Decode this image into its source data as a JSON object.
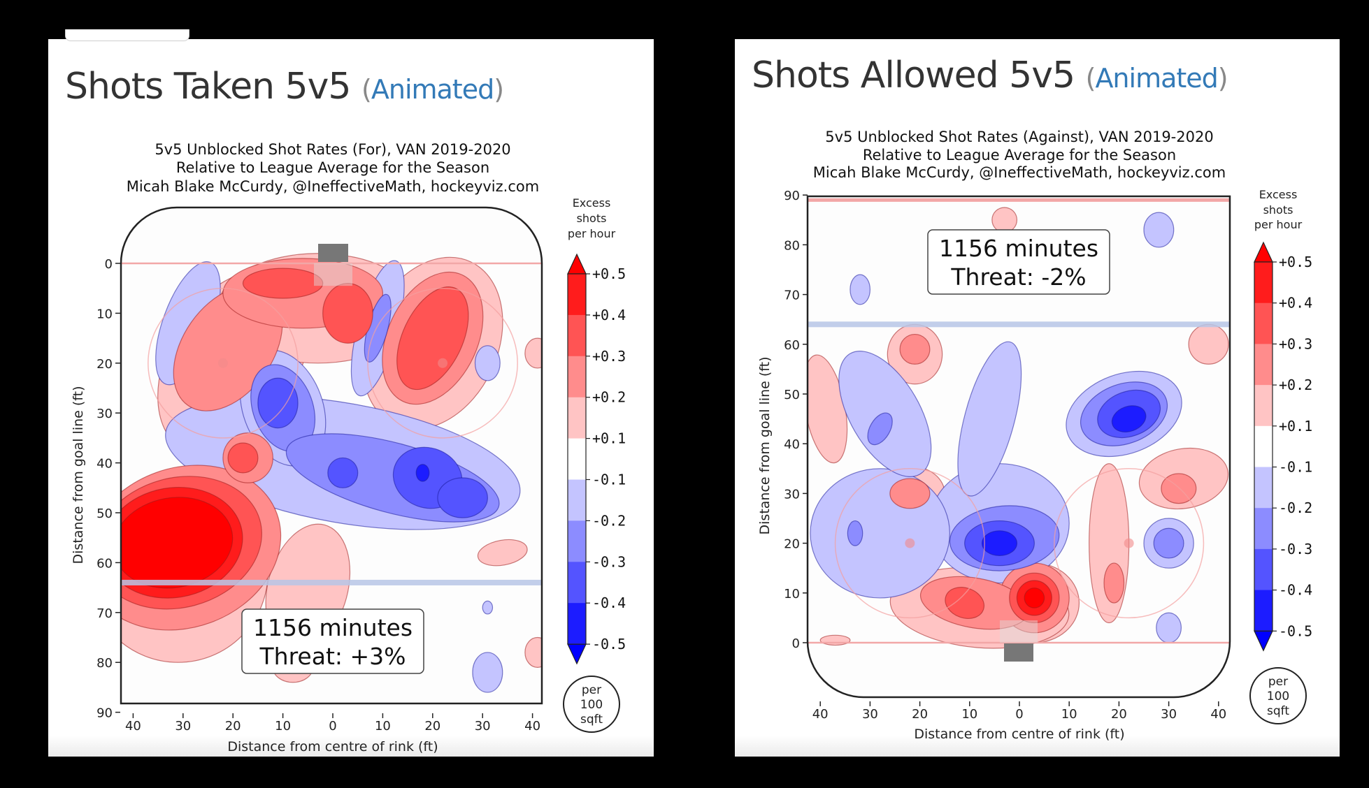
{
  "panels": [
    {
      "heading": "Shots Taken 5v5",
      "heading_link": "Animated",
      "paren_open": "(",
      "paren_close": ")"
    },
    {
      "heading": "Shots Allowed 5v5",
      "heading_link": "Animated",
      "paren_open": "(",
      "paren_close": ")"
    }
  ],
  "colors": {
    "link": "#337ab7",
    "pos": [
      "#ffc4c4",
      "#ff8c8c",
      "#ff5454",
      "#ff1c1c",
      "#ff0000"
    ],
    "neg": [
      "#c4c4ff",
      "#8c8cff",
      "#5454ff",
      "#1c1cff",
      "#0000ff"
    ],
    "blue_line": "#b7c6e6",
    "goal_line": "#f2a7a7",
    "net": "#777777"
  },
  "chart_data": [
    {
      "type": "heatmap",
      "title_lines": [
        "5v5 Unblocked Shot Rates (For), VAN 2019-2020",
        "Relative to League Average for the Season",
        "Micah Blake McCurdy, @IneffectiveMath, hockeyviz.com"
      ],
      "xlabel": "Distance from centre of rink (ft)",
      "ylabel": "Distance from goal line (ft)",
      "x_ticks": [
        "40",
        "30",
        "20",
        "10",
        "0",
        "10",
        "20",
        "30",
        "40"
      ],
      "x_tick_values": [
        -40,
        -30,
        -20,
        -10,
        0,
        10,
        20,
        30,
        40
      ],
      "y_ticks": [
        "0",
        "10",
        "20",
        "30",
        "40",
        "50",
        "60",
        "70",
        "80",
        "90"
      ],
      "y_tick_values": [
        0,
        10,
        20,
        30,
        40,
        50,
        60,
        70,
        80,
        90
      ],
      "xlim": [
        -42.5,
        42.5
      ],
      "ylim": [
        -11,
        89
      ],
      "y_inverted": true,
      "goal_end": "top",
      "blue_line_ft": 64,
      "colorbar": {
        "title": [
          "Excess",
          "shots",
          "per hour"
        ],
        "tick_labels": [
          "+0.5",
          "+0.4",
          "+0.3",
          "+0.2",
          "+0.1",
          "-0.1",
          "-0.2",
          "-0.3",
          "-0.4",
          "-0.5"
        ],
        "levels": [
          0.5,
          0.4,
          0.3,
          0.2,
          0.1,
          -0.1,
          -0.2,
          -0.3,
          -0.4,
          -0.5
        ],
        "unit_badge": [
          "per",
          "100",
          "sqft"
        ]
      },
      "annotation": [
        "1156 minutes",
        "Threat: +3%"
      ],
      "minutes": 1156,
      "threat_pct": 3,
      "blobs": [
        {
          "x": -32,
          "y": 56,
          "rx": 12,
          "ry": 9,
          "level": 5,
          "rot": -10
        },
        {
          "x": -32,
          "y": 56,
          "rx": 14,
          "ry": 11,
          "level": 4,
          "rot": -10
        },
        {
          "x": -31,
          "y": 56,
          "rx": 17,
          "ry": 13,
          "level": 3,
          "rot": -15
        },
        {
          "x": -30,
          "y": 57,
          "rx": 20,
          "ry": 16,
          "level": 2,
          "rot": -20
        },
        {
          "x": -31,
          "y": 62,
          "rx": 18,
          "ry": 18,
          "level": 1,
          "rot": 0
        },
        {
          "x": -21,
          "y": 17,
          "rx": 9,
          "ry": 14,
          "level": 2,
          "rot": 35
        },
        {
          "x": -20,
          "y": 20,
          "rx": 13,
          "ry": 20,
          "level": 1,
          "rot": 30
        },
        {
          "x": -18,
          "y": 39,
          "rx": 3,
          "ry": 3,
          "level": 3
        },
        {
          "x": -17,
          "y": 39,
          "rx": 5,
          "ry": 5,
          "level": 2
        },
        {
          "x": -17,
          "y": 39,
          "rx": 8,
          "ry": 8,
          "level": 1
        },
        {
          "x": -10,
          "y": 4,
          "rx": 8,
          "ry": 3,
          "level": 3
        },
        {
          "x": -6,
          "y": 6,
          "rx": 16,
          "ry": 7,
          "level": 2
        },
        {
          "x": -3,
          "y": 9,
          "rx": 20,
          "ry": 11,
          "level": 1
        },
        {
          "x": 3,
          "y": 10,
          "rx": 5,
          "ry": 6,
          "level": 3
        },
        {
          "x": 20,
          "y": 15,
          "rx": 6,
          "ry": 11,
          "level": 3,
          "rot": 25
        },
        {
          "x": 20,
          "y": 15,
          "rx": 9,
          "ry": 14,
          "level": 2,
          "rot": 25
        },
        {
          "x": 20,
          "y": 16,
          "rx": 13,
          "ry": 18,
          "level": 1,
          "rot": 25
        },
        {
          "x": -5,
          "y": 65,
          "rx": 8,
          "ry": 13,
          "level": 1,
          "rot": 15
        },
        {
          "x": -8,
          "y": 81,
          "rx": 4,
          "ry": 3,
          "level": 1
        },
        {
          "x": 34,
          "y": 58,
          "rx": 5,
          "ry": 2.5,
          "level": 1,
          "rot": -10
        },
        {
          "x": 41,
          "y": 18,
          "rx": 2.5,
          "ry": 3,
          "level": 1
        },
        {
          "x": 41,
          "y": 78,
          "rx": 2.5,
          "ry": 3,
          "level": 1
        },
        {
          "x": 2,
          "y": 40,
          "rx": 36,
          "ry": 12,
          "level": -1,
          "rot": 10
        },
        {
          "x": -10,
          "y": 29,
          "rx": 8,
          "ry": 12,
          "level": -1,
          "rot": -20
        },
        {
          "x": -10,
          "y": 29,
          "rx": 6,
          "ry": 9,
          "level": -2,
          "rot": -20
        },
        {
          "x": -11,
          "y": 28,
          "rx": 4,
          "ry": 5,
          "level": -3
        },
        {
          "x": 12,
          "y": 43,
          "rx": 22,
          "ry": 7,
          "level": -2,
          "rot": 15
        },
        {
          "x": 2,
          "y": 42,
          "rx": 3,
          "ry": 3,
          "level": -3
        },
        {
          "x": 19,
          "y": 43,
          "rx": 7,
          "ry": 6,
          "level": -3,
          "rot": 20
        },
        {
          "x": 26,
          "y": 47,
          "rx": 5,
          "ry": 4,
          "level": -3
        },
        {
          "x": 18,
          "y": 42,
          "rx": 1.3,
          "ry": 1.7,
          "level": -4
        },
        {
          "x": -25,
          "y": 49,
          "rx": 14,
          "ry": 5,
          "level": -1,
          "rot": 15
        },
        {
          "x": -29,
          "y": 12,
          "rx": 5,
          "ry": 13,
          "level": -1,
          "rot": 20
        },
        {
          "x": 9,
          "y": 13,
          "rx": 4,
          "ry": 14,
          "level": -1,
          "rot": 15
        },
        {
          "x": 9,
          "y": 13,
          "rx": 2,
          "ry": 7,
          "level": -2,
          "rot": 15
        },
        {
          "x": 31,
          "y": 20,
          "rx": 2.5,
          "ry": 3.5,
          "level": -1
        },
        {
          "x": 31,
          "y": 82,
          "rx": 3,
          "ry": 4,
          "level": -1
        },
        {
          "x": 31,
          "y": 69,
          "rx": 1,
          "ry": 1.3,
          "level": -1
        }
      ]
    },
    {
      "type": "heatmap",
      "title_lines": [
        "5v5 Unblocked Shot Rates (Against), VAN 2019-2020",
        "Relative to League Average for the Season",
        "Micah Blake McCurdy, @IneffectiveMath, hockeyviz.com"
      ],
      "xlabel": "Distance from centre of rink (ft)",
      "ylabel": "Distance from goal line (ft)",
      "x_ticks": [
        "40",
        "30",
        "20",
        "10",
        "0",
        "10",
        "20",
        "30",
        "40"
      ],
      "x_tick_values": [
        -40,
        -30,
        -20,
        -10,
        0,
        10,
        20,
        30,
        40
      ],
      "y_ticks": [
        "0",
        "10",
        "20",
        "30",
        "40",
        "50",
        "60",
        "70",
        "80",
        "90"
      ],
      "y_tick_values": [
        0,
        10,
        20,
        30,
        40,
        50,
        60,
        70,
        80,
        90
      ],
      "xlim": [
        -42.5,
        42.5
      ],
      "ylim": [
        -11,
        89
      ],
      "y_inverted": false,
      "goal_end": "bottom",
      "blue_line_ft": 64,
      "colorbar": {
        "title": [
          "Excess",
          "shots",
          "per hour"
        ],
        "tick_labels": [
          "+0.5",
          "+0.4",
          "+0.3",
          "+0.2",
          "+0.1",
          "-0.1",
          "-0.2",
          "-0.3",
          "-0.4",
          "-0.5"
        ],
        "levels": [
          0.5,
          0.4,
          0.3,
          0.2,
          0.1,
          -0.1,
          -0.2,
          -0.3,
          -0.4,
          -0.5
        ],
        "unit_badge": [
          "per",
          "100",
          "sqft"
        ]
      },
      "annotation": [
        "1156 minutes",
        "Threat: -2%"
      ],
      "minutes": 1156,
      "threat_pct": -2,
      "blobs": [
        {
          "x": 3,
          "y": 9,
          "rx": 2,
          "ry": 2,
          "level": 5
        },
        {
          "x": 3,
          "y": 9,
          "rx": 3.5,
          "ry": 3.5,
          "level": 4
        },
        {
          "x": 3,
          "y": 9,
          "rx": 5,
          "ry": 5,
          "level": 3
        },
        {
          "x": 3,
          "y": 9,
          "rx": 7,
          "ry": 7,
          "level": 2
        },
        {
          "x": 3,
          "y": 8,
          "rx": 9,
          "ry": 8,
          "level": 1
        },
        {
          "x": -11,
          "y": 8,
          "rx": 4,
          "ry": 3,
          "level": 3,
          "rot": 20
        },
        {
          "x": -9,
          "y": 8,
          "rx": 11,
          "ry": 5,
          "level": 2,
          "rot": 10
        },
        {
          "x": -8,
          "y": 7,
          "rx": 18,
          "ry": 8,
          "level": 1,
          "rot": 5
        },
        {
          "x": -22,
          "y": 30,
          "rx": 4,
          "ry": 3,
          "level": 2
        },
        {
          "x": -22,
          "y": 30,
          "rx": 7,
          "ry": 5.5,
          "level": 1
        },
        {
          "x": -21,
          "y": 59,
          "rx": 3,
          "ry": 3,
          "level": 2
        },
        {
          "x": -21,
          "y": 58,
          "rx": 5.5,
          "ry": 6,
          "level": 1
        },
        {
          "x": -39,
          "y": 47,
          "rx": 4,
          "ry": 11,
          "level": 1,
          "rot": -10
        },
        {
          "x": -37,
          "y": 0.5,
          "rx": 3,
          "ry": 1,
          "level": 1
        },
        {
          "x": 19,
          "y": 12,
          "rx": 2,
          "ry": 4,
          "level": 2
        },
        {
          "x": 18,
          "y": 20,
          "rx": 4,
          "ry": 16,
          "level": 1
        },
        {
          "x": 32,
          "y": 31,
          "rx": 3.5,
          "ry": 3,
          "level": 2
        },
        {
          "x": 33,
          "y": 33,
          "rx": 9,
          "ry": 6,
          "level": 1,
          "rot": -10
        },
        {
          "x": 38,
          "y": 60,
          "rx": 4,
          "ry": 4,
          "level": 1
        },
        {
          "x": -3,
          "y": 85,
          "rx": 2.5,
          "ry": 2.5,
          "level": 1
        },
        {
          "x": -4,
          "y": 20,
          "rx": 3.5,
          "ry": 2.5,
          "level": -4
        },
        {
          "x": -4,
          "y": 20,
          "rx": 7,
          "ry": 4.5,
          "level": -3
        },
        {
          "x": -3,
          "y": 21,
          "rx": 11,
          "ry": 6.5,
          "level": -2,
          "rot": -5
        },
        {
          "x": -4,
          "y": 24,
          "rx": 14,
          "ry": 12,
          "level": -1
        },
        {
          "x": -28,
          "y": 22,
          "rx": 14,
          "ry": 13,
          "level": -1
        },
        {
          "x": -33,
          "y": 22,
          "rx": 1.5,
          "ry": 2.5,
          "level": -2
        },
        {
          "x": -27,
          "y": 46,
          "rx": 7,
          "ry": 14,
          "level": -1,
          "rot": -30
        },
        {
          "x": -28,
          "y": 43,
          "rx": 2,
          "ry": 3.5,
          "level": -2,
          "rot": 30
        },
        {
          "x": -6,
          "y": 45,
          "rx": 5,
          "ry": 16,
          "level": -1,
          "rot": 15
        },
        {
          "x": 21,
          "y": 46,
          "rx": 12,
          "ry": 8,
          "level": -1,
          "rot": -20
        },
        {
          "x": 21,
          "y": 46,
          "rx": 9,
          "ry": 6,
          "level": -2,
          "rot": -20
        },
        {
          "x": 22,
          "y": 46,
          "rx": 6.5,
          "ry": 4.5,
          "level": -3,
          "rot": -20
        },
        {
          "x": 22,
          "y": 45,
          "rx": 3.5,
          "ry": 2.5,
          "level": -4,
          "rot": -20
        },
        {
          "x": 30,
          "y": 20,
          "rx": 5,
          "ry": 5,
          "level": -1
        },
        {
          "x": 30,
          "y": 20,
          "rx": 3,
          "ry": 3,
          "level": -2
        },
        {
          "x": 30,
          "y": 3,
          "rx": 2.5,
          "ry": 3,
          "level": -1
        },
        {
          "x": 28,
          "y": 83,
          "rx": 3,
          "ry": 3.5,
          "level": -1
        },
        {
          "x": -32,
          "y": 71,
          "rx": 2,
          "ry": 3,
          "level": -1
        }
      ]
    }
  ]
}
